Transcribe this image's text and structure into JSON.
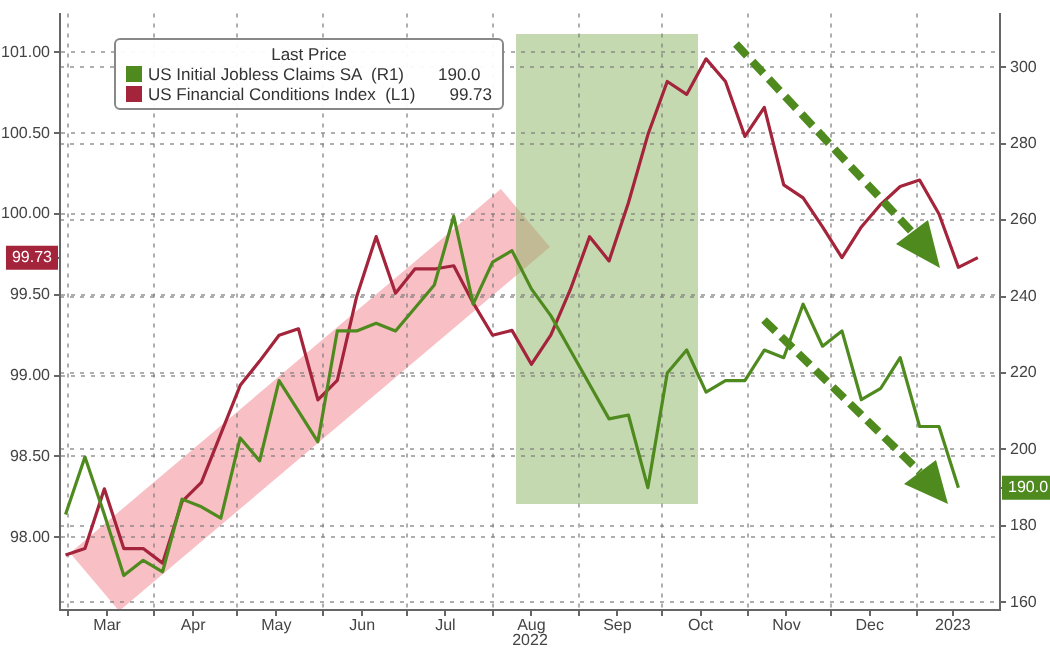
{
  "chart_data": {
    "type": "line",
    "legend_title": "Last Price",
    "xlabel": "2022",
    "legend": "top left",
    "grid": true,
    "marker": "none",
    "line_style": "solid",
    "x": [
      "2022-02-28",
      "2022-03-07",
      "2022-03-14",
      "2022-03-21",
      "2022-03-28",
      "2022-04-04",
      "2022-04-11",
      "2022-04-18",
      "2022-04-25",
      "2022-05-02",
      "2022-05-09",
      "2022-05-16",
      "2022-05-23",
      "2022-05-30",
      "2022-06-06",
      "2022-06-13",
      "2022-06-20",
      "2022-06-27",
      "2022-07-04",
      "2022-07-11",
      "2022-07-18",
      "2022-07-25",
      "2022-08-01",
      "2022-08-08",
      "2022-08-15",
      "2022-08-22",
      "2022-08-29",
      "2022-09-05",
      "2022-09-12",
      "2022-09-19",
      "2022-09-26",
      "2022-10-03",
      "2022-10-10",
      "2022-10-17",
      "2022-10-24",
      "2022-10-31",
      "2022-11-07",
      "2022-11-14",
      "2022-11-21",
      "2022-11-28",
      "2022-12-05",
      "2022-12-12",
      "2022-12-19",
      "2022-12-26",
      "2023-01-02",
      "2023-01-09",
      "2023-01-16",
      "2023-01-23"
    ],
    "series": [
      {
        "name": "US Initial Jobless Claims SA  (R1)",
        "color": "#4f8a1f",
        "axis": "y2",
        "values": [
          183,
          198,
          183,
          167,
          171,
          168,
          187,
          185,
          182,
          203,
          197,
          218,
          210,
          202,
          231,
          231,
          233,
          231,
          237,
          243,
          261,
          238,
          249,
          252,
          242,
          235,
          226,
          217,
          208,
          209,
          190,
          220,
          226,
          215,
          218,
          218,
          226,
          224,
          238,
          227,
          231,
          213,
          216,
          224,
          206,
          206,
          190.0,
          null
        ]
      },
      {
        "name": "US Financial Conditions Index  (L1)",
        "color": "#a3243b",
        "axis": "y",
        "values": [
          97.89,
          97.93,
          98.3,
          97.93,
          97.93,
          97.84,
          98.22,
          98.34,
          98.64,
          98.94,
          99.09,
          99.25,
          99.29,
          98.85,
          98.97,
          99.49,
          99.86,
          99.51,
          99.66,
          99.66,
          99.68,
          99.45,
          99.25,
          99.28,
          99.07,
          99.25,
          99.53,
          99.86,
          99.71,
          100.07,
          100.49,
          100.82,
          100.74,
          100.96,
          100.82,
          100.48,
          100.66,
          100.18,
          100.1,
          99.92,
          99.73,
          99.92,
          100.06,
          100.17,
          100.21,
          100.0,
          99.67,
          99.73
        ]
      }
    ],
    "xlim": [
      "2022-02-26",
      "2023-01-31"
    ],
    "xticks": [
      {
        "value": "2022-03-01",
        "label": null
      },
      {
        "value": "2022-03-15",
        "label": "Mar"
      },
      {
        "value": "2022-04-01",
        "label": null
      },
      {
        "value": "2022-04-15",
        "label": "Apr"
      },
      {
        "value": "2022-05-01",
        "label": null
      },
      {
        "value": "2022-05-15",
        "label": "May"
      },
      {
        "value": "2022-06-01",
        "label": null
      },
      {
        "value": "2022-06-15",
        "label": "Jun"
      },
      {
        "value": "2022-07-01",
        "label": null
      },
      {
        "value": "2022-07-15",
        "label": "Jul"
      },
      {
        "value": "2022-08-01",
        "label": null
      },
      {
        "value": "2022-08-15",
        "label": "Aug"
      },
      {
        "value": "2022-09-01",
        "label": null
      },
      {
        "value": "2022-09-15",
        "label": "Sep"
      },
      {
        "value": "2022-10-01",
        "label": null
      },
      {
        "value": "2022-10-15",
        "label": "Oct"
      },
      {
        "value": "2022-11-01",
        "label": null
      },
      {
        "value": "2022-11-15",
        "label": "Nov"
      },
      {
        "value": "2022-12-01",
        "label": null
      },
      {
        "value": "2022-12-15",
        "label": "Dec"
      },
      {
        "value": "2023-01-01",
        "label": null
      },
      {
        "value": "2023-01-14",
        "label": "2023"
      }
    ],
    "ylim": [
      97.55,
      101.24
    ],
    "yticks": [
      {
        "value": 98,
        "label": "98.00"
      },
      {
        "value": 98.5,
        "label": "98.50"
      },
      {
        "value": 99,
        "label": "99.00"
      },
      {
        "value": 99.5,
        "label": "99.50"
      },
      {
        "value": 99.73,
        "label": "99.73"
      },
      {
        "value": 100,
        "label": "100.00"
      },
      {
        "value": 100.5,
        "label": "100.50"
      },
      {
        "value": 101,
        "label": "101.00"
      }
    ],
    "y2lim": [
      158,
      314
    ],
    "y2ticks": [
      160,
      180,
      {
        "value": 190,
        "label": "190.0"
      },
      200,
      220,
      240,
      260,
      280,
      300
    ]
  }
}
